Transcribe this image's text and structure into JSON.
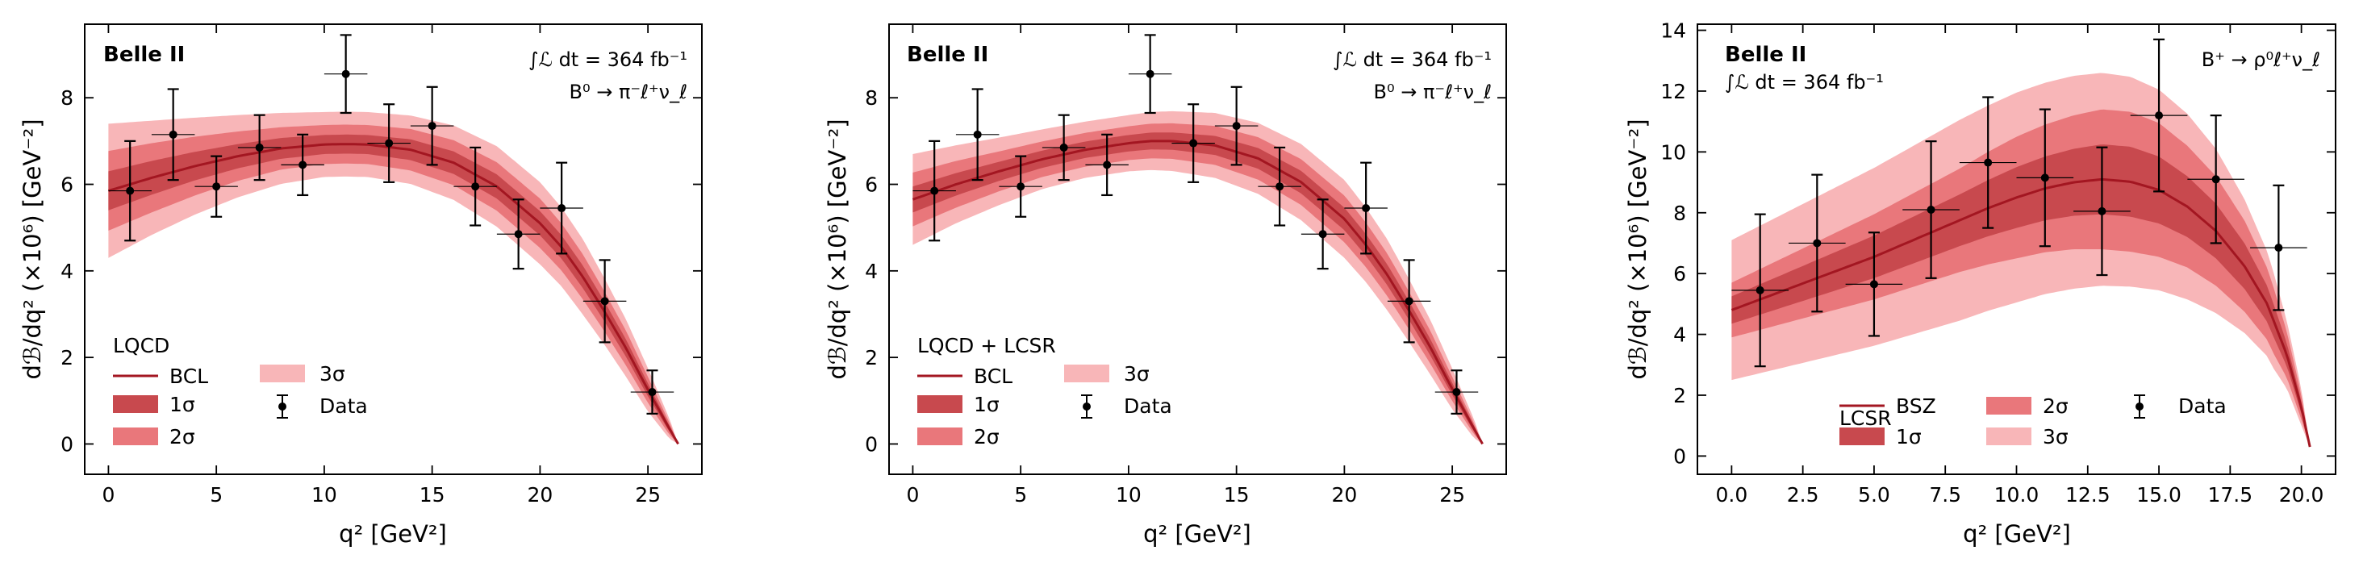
{
  "colors": {
    "band_3sigma": "#f8b6b8",
    "band_2sigma": "#e9777b",
    "band_1sigma": "#c8494e",
    "central_line": "#a31621",
    "data_points": "#000000"
  },
  "chart_data": [
    {
      "type": "line",
      "title": "",
      "brand": "Belle II",
      "luminosity": "∫ℒ dt = 364 fb⁻¹",
      "decay": "B⁰ → π⁻ℓ⁺ν_ℓ",
      "xlabel": "q² [GeV²]",
      "ylabel": "dℬ/dq² (×10⁶) [GeV⁻²]",
      "xlim": [
        -1.1,
        27.5
      ],
      "ylim": [
        -0.7,
        9.7
      ],
      "xticks": [
        0,
        5,
        10,
        15,
        20,
        25
      ],
      "xtick_labels": [
        "0",
        "5",
        "10",
        "15",
        "20",
        "25"
      ],
      "yticks": [
        0,
        2,
        4,
        6,
        8
      ],
      "ytick_labels": [
        "0",
        "2",
        "4",
        "6",
        "8"
      ],
      "legend_title": "LQCD",
      "legend_labels": {
        "fit": "BCL",
        "s1": "1σ",
        "s2": "2σ",
        "s3": "3σ",
        "data": "Data"
      },
      "legend_position": "lower-left",
      "curve": {
        "x": [
          0,
          2,
          4,
          6,
          8,
          10,
          11,
          12,
          14,
          16,
          18,
          20,
          21,
          22,
          23,
          24,
          25,
          26,
          26.4
        ],
        "y": [
          5.85,
          6.15,
          6.42,
          6.65,
          6.83,
          6.92,
          6.93,
          6.92,
          6.8,
          6.5,
          5.95,
          5.1,
          4.55,
          3.85,
          3.05,
          2.2,
          1.25,
          0.35,
          0.0
        ]
      },
      "band_halfwidth": {
        "x": [
          0,
          2,
          4,
          6,
          8,
          10,
          12,
          14,
          16,
          18,
          20,
          22,
          24,
          25,
          26,
          26.4
        ],
        "s1": [
          0.45,
          0.39,
          0.33,
          0.28,
          0.24,
          0.22,
          0.22,
          0.24,
          0.26,
          0.28,
          0.28,
          0.26,
          0.2,
          0.15,
          0.07,
          0.0
        ],
        "s2": [
          0.92,
          0.8,
          0.68,
          0.57,
          0.49,
          0.45,
          0.45,
          0.48,
          0.52,
          0.56,
          0.57,
          0.52,
          0.4,
          0.3,
          0.14,
          0.0
        ],
        "s3": [
          1.55,
          1.32,
          1.12,
          0.95,
          0.82,
          0.75,
          0.75,
          0.79,
          0.86,
          0.93,
          0.95,
          0.87,
          0.66,
          0.5,
          0.23,
          0.0
        ]
      },
      "data": {
        "x": [
          1,
          3,
          5,
          7,
          9,
          11,
          13,
          15,
          17,
          19,
          21,
          23,
          25.2
        ],
        "y": [
          5.85,
          7.15,
          5.95,
          6.85,
          6.45,
          8.55,
          6.95,
          7.35,
          5.95,
          4.85,
          5.45,
          3.3,
          1.2
        ],
        "yerr": [
          1.15,
          1.05,
          0.7,
          0.75,
          0.7,
          0.9,
          0.9,
          0.9,
          0.9,
          0.8,
          1.05,
          0.95,
          0.5
        ],
        "xerr": 1.0
      }
    },
    {
      "type": "line",
      "title": "",
      "brand": "Belle II",
      "luminosity": "∫ℒ dt = 364 fb⁻¹",
      "decay": "B⁰ → π⁻ℓ⁺ν_ℓ",
      "xlabel": "q² [GeV²]",
      "ylabel": "dℬ/dq² (×10⁶) [GeV⁻²]",
      "xlim": [
        -1.1,
        27.5
      ],
      "ylim": [
        -0.7,
        9.7
      ],
      "xticks": [
        0,
        5,
        10,
        15,
        20,
        25
      ],
      "xtick_labels": [
        "0",
        "5",
        "10",
        "15",
        "20",
        "25"
      ],
      "yticks": [
        0,
        2,
        4,
        6,
        8
      ],
      "ytick_labels": [
        "0",
        "2",
        "4",
        "6",
        "8"
      ],
      "legend_title": "LQCD + LCSR",
      "legend_labels": {
        "fit": "BCL",
        "s1": "1σ",
        "s2": "2σ",
        "s3": "3σ",
        "data": "Data"
      },
      "legend_position": "lower-left",
      "curve": {
        "x": [
          0,
          2,
          4,
          6,
          8,
          10,
          11,
          12,
          14,
          16,
          18,
          20,
          21,
          22,
          23,
          24,
          25,
          26,
          26.4
        ],
        "y": [
          5.65,
          6.0,
          6.3,
          6.58,
          6.8,
          6.95,
          7.0,
          7.0,
          6.9,
          6.6,
          6.05,
          5.2,
          4.6,
          3.9,
          3.08,
          2.22,
          1.27,
          0.36,
          0.0
        ]
      },
      "band_halfwidth": {
        "x": [
          0,
          2,
          4,
          6,
          8,
          10,
          12,
          14,
          16,
          18,
          20,
          22,
          24,
          25,
          26,
          26.4
        ],
        "s1": [
          0.3,
          0.26,
          0.22,
          0.2,
          0.19,
          0.19,
          0.2,
          0.22,
          0.24,
          0.26,
          0.26,
          0.24,
          0.19,
          0.14,
          0.07,
          0.0
        ],
        "s2": [
          0.62,
          0.54,
          0.46,
          0.41,
          0.39,
          0.39,
          0.41,
          0.45,
          0.49,
          0.53,
          0.54,
          0.49,
          0.38,
          0.28,
          0.13,
          0.0
        ],
        "s3": [
          1.05,
          0.9,
          0.78,
          0.69,
          0.65,
          0.65,
          0.69,
          0.75,
          0.82,
          0.88,
          0.9,
          0.82,
          0.63,
          0.47,
          0.22,
          0.0
        ]
      },
      "data": {
        "x": [
          1,
          3,
          5,
          7,
          9,
          11,
          13,
          15,
          17,
          19,
          21,
          23,
          25.2
        ],
        "y": [
          5.85,
          7.15,
          5.95,
          6.85,
          6.45,
          8.55,
          6.95,
          7.35,
          5.95,
          4.85,
          5.45,
          3.3,
          1.2
        ],
        "yerr": [
          1.15,
          1.05,
          0.7,
          0.75,
          0.7,
          0.9,
          0.9,
          0.9,
          0.9,
          0.8,
          1.05,
          0.95,
          0.5
        ],
        "xerr": 1.0
      }
    },
    {
      "type": "line",
      "title": "",
      "brand": "Belle II",
      "luminosity": "∫ℒ dt = 364 fb⁻¹",
      "decay": "B⁺ → ρ⁰ℓ⁺ν_ℓ",
      "xlabel": "q² [GeV²]",
      "ylabel": "dℬ/dq² (×10⁶) [GeV⁻²]",
      "xlim": [
        -1.2,
        21.2
      ],
      "ylim": [
        -0.6,
        14.2
      ],
      "xticks": [
        0,
        2.5,
        5,
        7.5,
        10,
        12.5,
        15,
        17.5,
        20
      ],
      "xtick_labels": [
        "0.0",
        "2.5",
        "5.0",
        "7.5",
        "10.0",
        "12.5",
        "15.0",
        "17.5",
        "20.0"
      ],
      "yticks": [
        0,
        2,
        4,
        6,
        8,
        10,
        12,
        14
      ],
      "ytick_labels": [
        "0",
        "2",
        "4",
        "6",
        "8",
        "10",
        "12",
        "14"
      ],
      "legend_title": "LCSR",
      "legend_labels": {
        "fit": "BSZ",
        "s1": "1σ",
        "s2": "2σ",
        "s3": "3σ",
        "data": "Data"
      },
      "legend_position": "lower-center",
      "curve": {
        "x": [
          0,
          1,
          2,
          3,
          4,
          5,
          6,
          7,
          8,
          9,
          10,
          11,
          12,
          13,
          14,
          15,
          16,
          17,
          18,
          18.8,
          19.5,
          20,
          20.3
        ],
        "y": [
          4.8,
          5.15,
          5.5,
          5.85,
          6.2,
          6.55,
          6.95,
          7.35,
          7.75,
          8.15,
          8.5,
          8.8,
          9.0,
          9.1,
          9.02,
          8.75,
          8.2,
          7.4,
          6.25,
          5.0,
          3.3,
          1.6,
          0.3
        ]
      },
      "band_halfwidth": {
        "x": [
          0,
          2,
          4,
          6,
          8,
          10,
          12,
          13,
          14,
          15,
          16,
          17,
          18,
          19,
          20,
          20.3
        ],
        "s1": [
          0.45,
          0.55,
          0.65,
          0.75,
          0.85,
          1.0,
          1.1,
          1.15,
          1.15,
          1.1,
          1.0,
          0.9,
          0.75,
          0.55,
          0.2,
          0.0
        ],
        "s2": [
          0.9,
          1.1,
          1.3,
          1.5,
          1.7,
          2.0,
          2.2,
          2.3,
          2.3,
          2.2,
          2.0,
          1.8,
          1.5,
          1.1,
          0.4,
          0.0
        ],
        "s3": [
          2.3,
          2.55,
          2.8,
          3.05,
          3.3,
          3.45,
          3.5,
          3.5,
          3.45,
          3.3,
          3.05,
          2.7,
          2.2,
          1.6,
          0.6,
          0.0
        ]
      },
      "data": {
        "x": [
          1,
          3,
          5,
          7,
          9,
          11,
          13,
          15,
          17,
          19.2
        ],
        "y": [
          5.45,
          7.0,
          5.65,
          8.1,
          9.65,
          9.15,
          8.05,
          11.2,
          9.1,
          6.85
        ],
        "yerr": [
          2.5,
          2.25,
          1.7,
          2.25,
          2.15,
          2.25,
          2.1,
          2.5,
          2.1,
          2.05
        ],
        "xerr": 1.0
      }
    }
  ]
}
